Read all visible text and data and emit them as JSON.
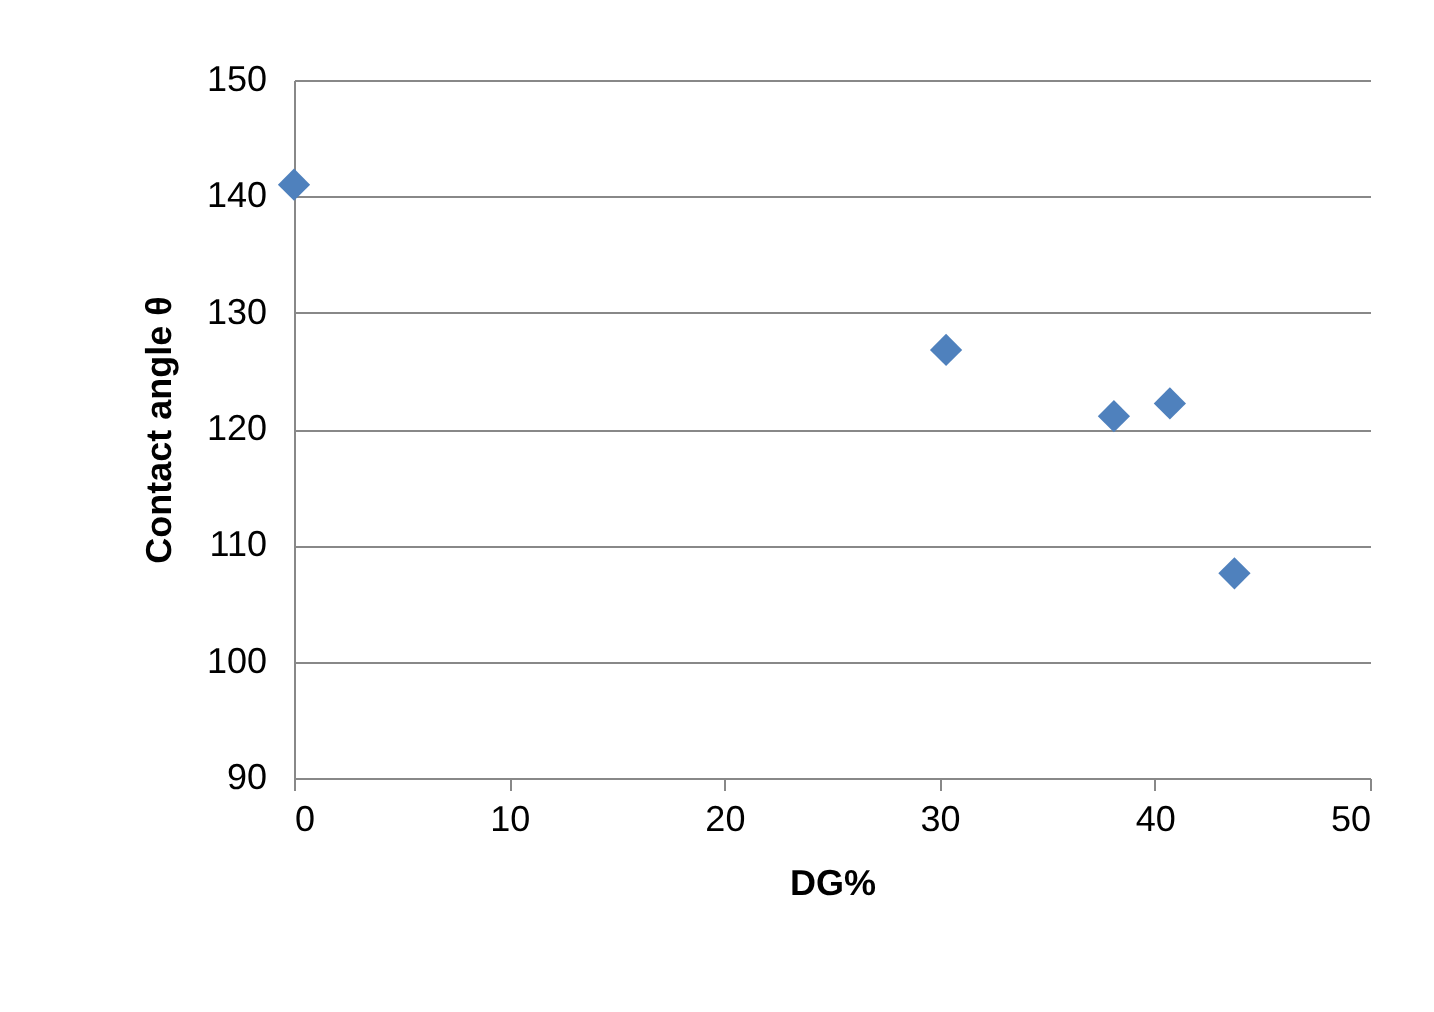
{
  "chart_data": {
    "type": "scatter",
    "xlabel": "DG%",
    "ylabel": "Contact angle θ",
    "x": [
      0,
      30.3,
      38.1,
      40.7,
      43.7
    ],
    "series": [
      {
        "color": "#4f81bd",
        "values": [
          141,
          126.8,
          121.1,
          122.2,
          107.6
        ]
      }
    ],
    "xlim": [
      0,
      50
    ],
    "xticks": [
      0,
      10,
      20,
      30,
      40,
      50
    ],
    "ylim": [
      90,
      150
    ],
    "yticks": [
      90,
      100,
      110,
      120,
      130,
      140,
      150
    ],
    "grid": "y",
    "marker": "diamond",
    "legend": false
  }
}
